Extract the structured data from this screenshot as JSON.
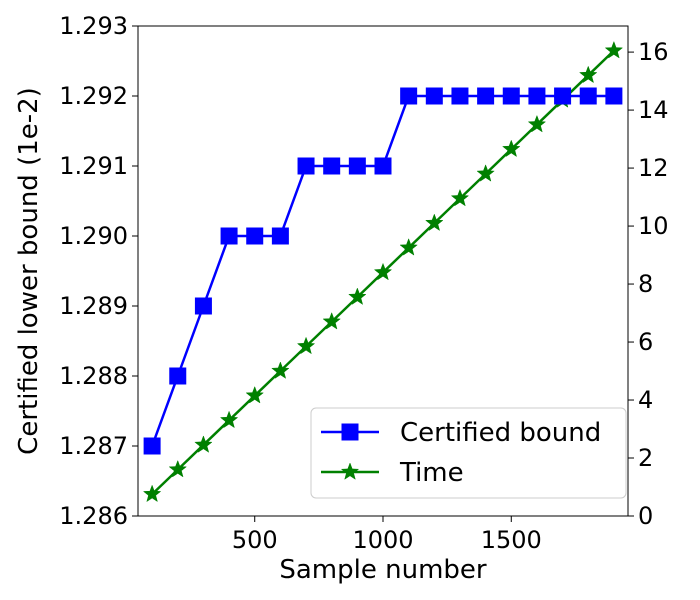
{
  "chart_data": {
    "type": "line",
    "xlabel": "Sample number",
    "ylabel_left": "Certified lower bound (1e-2)",
    "ylabel_right": "",
    "xlim": [
      45,
      1955
    ],
    "xticks": [
      500,
      1000,
      1500
    ],
    "ylim_left": [
      1.286,
      1.293
    ],
    "yticks_left": [
      1.286,
      1.287,
      1.288,
      1.289,
      1.29,
      1.291,
      1.292,
      1.293
    ],
    "ylim_right": [
      0,
      16.9
    ],
    "yticks_right": [
      0,
      2,
      4,
      6,
      8,
      10,
      12,
      14,
      16
    ],
    "grid": false,
    "legend_position": "bottom-right",
    "series": [
      {
        "name": "Certified bound",
        "axis": "left",
        "color": "#0000ff",
        "marker": "square",
        "x": [
          100,
          200,
          300,
          400,
          500,
          600,
          700,
          800,
          900,
          1000,
          1100,
          1200,
          1300,
          1400,
          1500,
          1600,
          1700,
          1800,
          1900
        ],
        "values": [
          1.287,
          1.288,
          1.289,
          1.29,
          1.29,
          1.29,
          1.291,
          1.291,
          1.291,
          1.291,
          1.292,
          1.292,
          1.292,
          1.292,
          1.292,
          1.292,
          1.292,
          1.292,
          1.292
        ]
      },
      {
        "name": "Time",
        "axis": "right",
        "color": "#008000",
        "marker": "star",
        "x": [
          100,
          200,
          300,
          400,
          500,
          600,
          700,
          800,
          900,
          1000,
          1100,
          1200,
          1300,
          1400,
          1500,
          1600,
          1700,
          1800,
          1900
        ],
        "values": [
          0.75,
          1.6,
          2.45,
          3.3,
          4.15,
          5.0,
          5.85,
          6.7,
          7.55,
          8.4,
          9.25,
          10.1,
          10.95,
          11.8,
          12.65,
          13.5,
          14.35,
          15.2,
          16.05
        ]
      }
    ]
  }
}
